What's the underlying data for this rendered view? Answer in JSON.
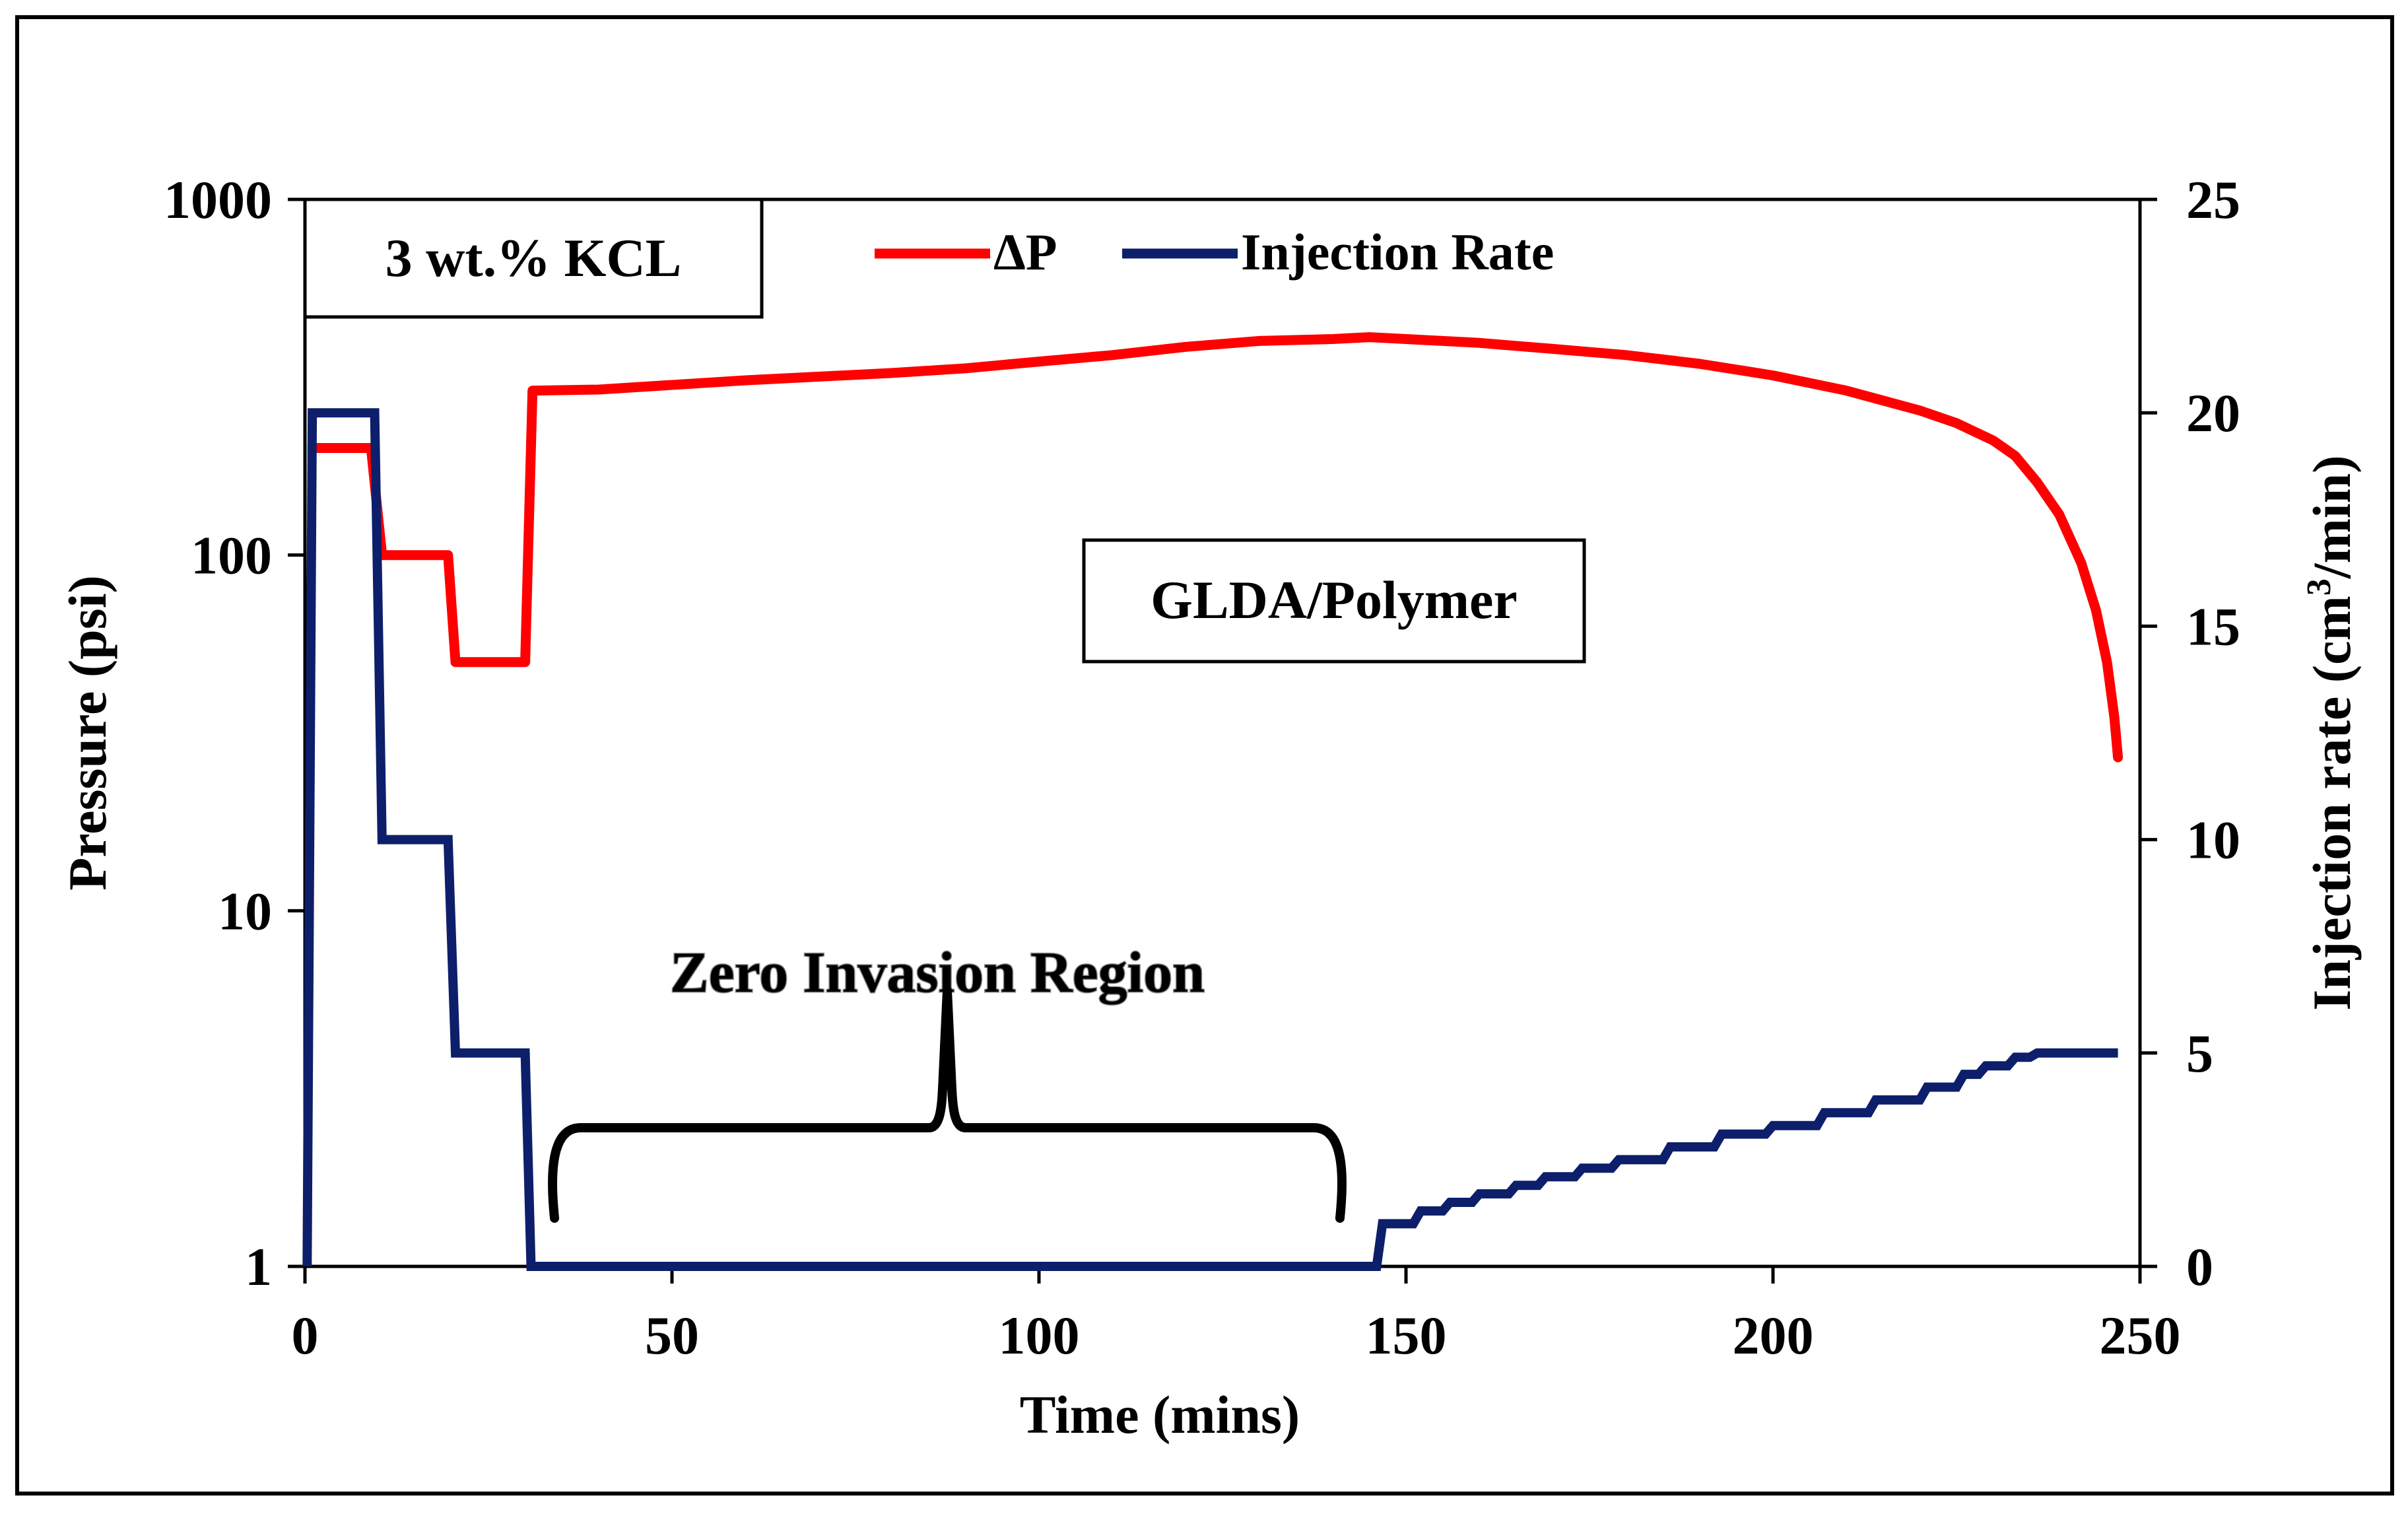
{
  "colors": {
    "dp": "#FF0000",
    "rate": "#0D1F6B",
    "axis": "#000000",
    "background": "#FFFFFF"
  },
  "chart_data": {
    "type": "line",
    "x": {
      "label": "Time (mins)",
      "range": [
        0,
        250
      ],
      "ticks": [
        0,
        50,
        100,
        150,
        200,
        250
      ]
    },
    "y_left": {
      "label": "Pressure (psi)",
      "scale": "log",
      "range": [
        1,
        1000
      ],
      "ticks": [
        1,
        10,
        100,
        1000
      ]
    },
    "y_right": {
      "label_main": "Injection rate (cm",
      "label_sup": "3",
      "label_end": "/min)",
      "range": [
        0,
        25
      ],
      "ticks": [
        0,
        5,
        10,
        15,
        20,
        25
      ]
    },
    "grid": false,
    "legend_position": "top",
    "series": [
      {
        "name": "ΔP",
        "axis": "left",
        "color": "#FF0000",
        "points": [
          [
            1,
            200
          ],
          [
            9,
            200
          ],
          [
            10.5,
            100
          ],
          [
            19.5,
            100
          ],
          [
            20.5,
            50
          ],
          [
            30,
            50
          ],
          [
            31,
            290
          ],
          [
            40,
            292
          ],
          [
            60,
            310
          ],
          [
            80,
            325
          ],
          [
            90,
            335
          ],
          [
            100,
            350
          ],
          [
            110,
            365
          ],
          [
            120,
            385
          ],
          [
            130,
            400
          ],
          [
            140,
            405
          ],
          [
            145,
            410
          ],
          [
            150,
            405
          ],
          [
            160,
            395
          ],
          [
            170,
            380
          ],
          [
            180,
            365
          ],
          [
            190,
            345
          ],
          [
            200,
            320
          ],
          [
            210,
            290
          ],
          [
            220,
            255
          ],
          [
            225,
            235
          ],
          [
            230,
            210
          ],
          [
            233,
            190
          ],
          [
            236,
            160
          ],
          [
            239,
            130
          ],
          [
            242,
            95
          ],
          [
            244,
            70
          ],
          [
            245.5,
            50
          ],
          [
            246.5,
            35
          ],
          [
            247,
            27
          ]
        ]
      },
      {
        "name": "Injection Rate",
        "axis": "right",
        "color": "#0D1F6B",
        "points": [
          [
            0.3,
            0
          ],
          [
            1,
            20
          ],
          [
            9.5,
            20
          ],
          [
            10.5,
            10
          ],
          [
            19.5,
            10
          ],
          [
            20.5,
            5
          ],
          [
            30,
            5
          ],
          [
            30.8,
            0
          ],
          [
            146,
            0
          ],
          [
            146.8,
            1
          ],
          [
            151,
            1
          ],
          [
            152,
            1.3
          ],
          [
            155,
            1.3
          ],
          [
            156,
            1.5
          ],
          [
            159,
            1.5
          ],
          [
            160,
            1.7
          ],
          [
            164,
            1.7
          ],
          [
            165,
            1.9
          ],
          [
            168,
            1.9
          ],
          [
            169,
            2.1
          ],
          [
            173,
            2.1
          ],
          [
            174,
            2.3
          ],
          [
            178,
            2.3
          ],
          [
            179,
            2.5
          ],
          [
            185,
            2.5
          ],
          [
            186,
            2.8
          ],
          [
            192,
            2.8
          ],
          [
            193,
            3.1
          ],
          [
            199,
            3.1
          ],
          [
            200,
            3.3
          ],
          [
            206,
            3.3
          ],
          [
            207,
            3.6
          ],
          [
            213,
            3.6
          ],
          [
            214,
            3.9
          ],
          [
            220,
            3.9
          ],
          [
            221,
            4.2
          ],
          [
            225,
            4.2
          ],
          [
            226,
            4.5
          ],
          [
            228,
            4.5
          ],
          [
            229,
            4.7
          ],
          [
            232,
            4.7
          ],
          [
            233,
            4.9
          ],
          [
            235,
            4.9
          ],
          [
            236,
            5
          ],
          [
            247,
            5
          ]
        ]
      }
    ],
    "annotations": {
      "kcl_label": "3 wt.% KCL",
      "glda_label": "GLDA/Polymer",
      "zero_invasion_label": "Zero Invasion Region",
      "zero_invasion_span": [
        34,
        141
      ]
    }
  }
}
